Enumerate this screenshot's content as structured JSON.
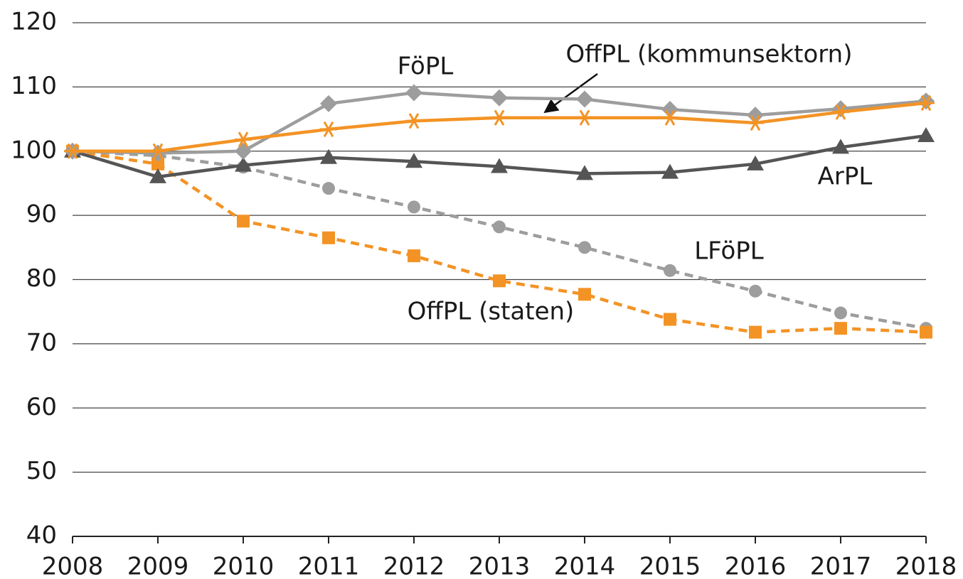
{
  "chart_data": {
    "type": "line",
    "x": [
      2008,
      2009,
      2010,
      2011,
      2012,
      2013,
      2014,
      2015,
      2016,
      2017,
      2018
    ],
    "xlim": [
      2008,
      2018
    ],
    "xticks": [
      2008,
      2009,
      2010,
      2011,
      2012,
      2013,
      2014,
      2015,
      2016,
      2017,
      2018
    ],
    "ylim": [
      40,
      120
    ],
    "yticks": [
      40,
      50,
      60,
      70,
      80,
      90,
      100,
      110,
      120
    ],
    "grid": true,
    "series": [
      {
        "name": "FöPL",
        "color": "#9d9d9d",
        "marker": "diamond",
        "dashed": false,
        "values": [
          100,
          99.7,
          100,
          107.4,
          109.1,
          108.3,
          108.1,
          106.5,
          105.6,
          106.6,
          107.8
        ]
      },
      {
        "name": "OffPL (kommunsektorn)",
        "color": "#f39325",
        "marker": "asterisk",
        "dashed": false,
        "values": [
          100,
          100,
          101.8,
          103.4,
          104.7,
          105.2,
          105.2,
          105.2,
          104.4,
          106.1,
          107.5
        ]
      },
      {
        "name": "ArPL",
        "color": "#555555",
        "marker": "triangle",
        "dashed": false,
        "values": [
          100,
          96.0,
          97.8,
          99.0,
          98.4,
          97.6,
          96.5,
          96.7,
          98.0,
          100.6,
          102.4
        ]
      },
      {
        "name": "LFöPL",
        "color": "#9d9d9d",
        "marker": "circle",
        "dashed": true,
        "values": [
          100,
          99.3,
          97.5,
          94.2,
          91.3,
          88.2,
          85.0,
          81.4,
          78.2,
          74.8,
          72.4
        ]
      },
      {
        "name": "OffPL (staten)",
        "color": "#f39325",
        "marker": "square",
        "dashed": true,
        "values": [
          100,
          98.0,
          89.1,
          86.5,
          83.7,
          79.8,
          77.7,
          73.8,
          71.8,
          72.4,
          71.8
        ]
      }
    ]
  }
}
